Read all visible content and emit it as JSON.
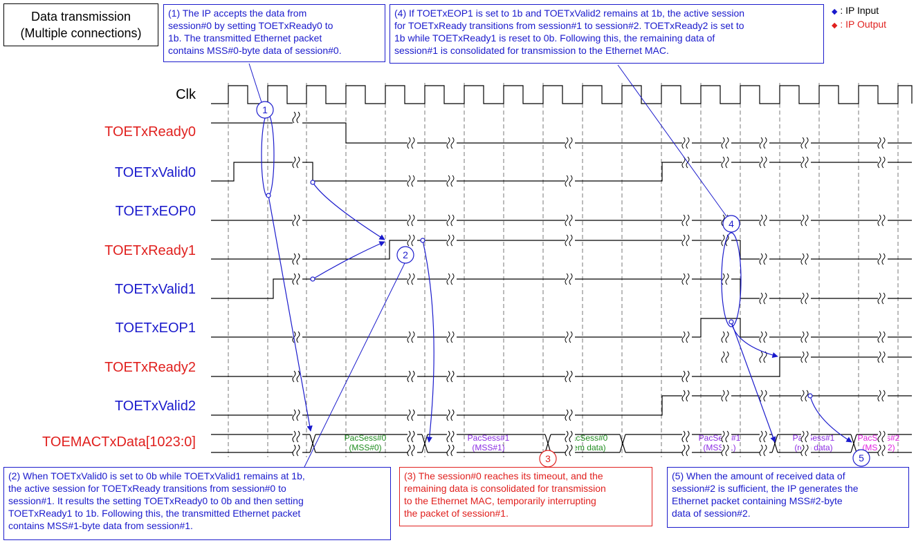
{
  "title": [
    "Data transmission",
    "(Multiple connections)"
  ],
  "legend": {
    "input_label": ": IP Input",
    "output_label": ": IP Output",
    "input_color": "#1a1acc",
    "output_color": "#e0201e"
  },
  "signals": [
    {
      "name": "Clk",
      "role": "clock"
    },
    {
      "name": "TOETxReady0",
      "role": "output"
    },
    {
      "name": "TOETxValid0",
      "role": "input"
    },
    {
      "name": "TOETxEOP0",
      "role": "input"
    },
    {
      "name": "TOETxReady1",
      "role": "output"
    },
    {
      "name": "TOETxValid1",
      "role": "input"
    },
    {
      "name": "TOETxEOP1",
      "role": "input"
    },
    {
      "name": "TOETxReady2",
      "role": "output"
    },
    {
      "name": "TOETxValid2",
      "role": "input"
    },
    {
      "name": "TOEMACTxData[1023:0]",
      "role": "output"
    }
  ],
  "bus_segments": [
    {
      "line1": "PacSess#0",
      "line2": "(MSS#0)",
      "color": "#1e8c1e"
    },
    {
      "line1": "PacSess#1",
      "line2": "(MSS#1)",
      "color": "#8a2be2"
    },
    {
      "line1": "PacSess#0",
      "line2": "(rem data)",
      "color": "#1e8c1e"
    },
    {
      "line1": "PacSess#1",
      "line2": "(MSS#1)",
      "color": "#8a2be2"
    },
    {
      "line1": "PacSess#1",
      "line2": "(rem data)",
      "color": "#8a2be2"
    },
    {
      "line1": "PacSess#2",
      "line2": "(MSS#2)",
      "color": "#e020e0"
    }
  ],
  "markers": [
    "1",
    "2",
    "3",
    "4",
    "5"
  ],
  "notes": {
    "n1": [
      "(1) The IP accepts the data from",
      "session#0 by setting TOETxReady0 to",
      "1b. The transmitted Ethernet packet",
      "contains MSS#0-byte data of session#0."
    ],
    "n2": [
      "(2) When TOETxValid0 is set to 0b while TOETxValid1 remains at 1b,",
      "the active session for TOETxReady transitions from session#0 to",
      "session#1. It results the setting TOETxReady0 to 0b and then setting",
      "TOETxReady1 to 1b. Following this, the transmitted Ethernet packet",
      "contains MSS#1-byte data from session#1."
    ],
    "n3": [
      "(3) The session#0 reaches its timeout,  and the",
      "remaining data is consolidated for transmission",
      "to the Ethernet MAC, temporarily interrupting",
      "the packet of session#1."
    ],
    "n4": [
      "(4) If TOETxEOP1 is set to 1b and TOETxValid2 remains at 1b, the active session",
      "for TOETxReady transitions from session#1 to session#2. TOETxReady2 is set to",
      "1b while TOETxReady1 is reset to 0b. Following this, the remaining data of",
      "session#1 is consolidated for transmission to the Ethernet MAC."
    ],
    "n5": [
      "(5) When the amount of received data of",
      "session#2 is sufficient, the IP generates the",
      "Ethernet packet containing MSS#2-byte",
      "data of session#2."
    ]
  }
}
